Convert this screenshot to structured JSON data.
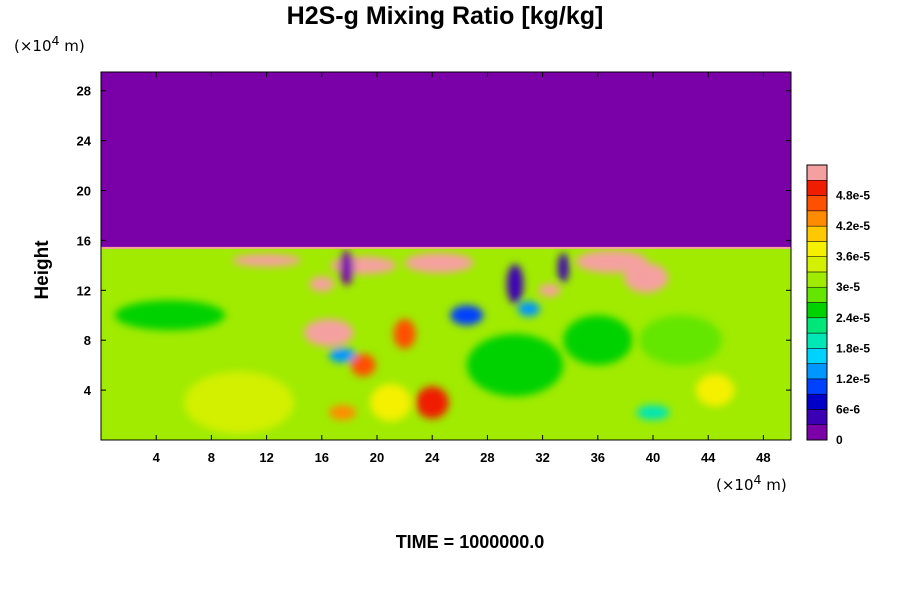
{
  "chart_data": {
    "type": "heatmap",
    "title": "H2S-g Mixing Ratio [kg/kg]",
    "xlabel": "",
    "ylabel": "Height",
    "x_unit": {
      "prefix": "(×10",
      "exp": "4",
      "suffix": " m)"
    },
    "y_unit": {
      "prefix": "(×10",
      "exp": "4",
      "suffix": " m)"
    },
    "x_ticks": [
      4,
      8,
      12,
      16,
      20,
      24,
      28,
      32,
      36,
      40,
      44,
      48
    ],
    "y_ticks": [
      4,
      8,
      12,
      16,
      20,
      24,
      28
    ],
    "xlim": [
      0,
      50
    ],
    "ylim": [
      0,
      29.5
    ],
    "colorbar": {
      "levels": [
        0,
        3e-06,
        6e-06,
        9e-06,
        1.2e-05,
        1.5e-05,
        1.8e-05,
        2.1e-05,
        2.4e-05,
        2.7e-05,
        3e-05,
        3.3e-05,
        3.6e-05,
        3.9e-05,
        4.2e-05,
        4.5e-05,
        4.8e-05,
        5.1e-05
      ],
      "tick_labels": [
        {
          "value": 0,
          "label": "0"
        },
        {
          "value": 6e-06,
          "label": "6e-6"
        },
        {
          "value": 1.2e-05,
          "label": "1.2e-5"
        },
        {
          "value": 1.8e-05,
          "label": "1.8e-5"
        },
        {
          "value": 2.4e-05,
          "label": "2.4e-5"
        },
        {
          "value": 3e-05,
          "label": "3e-5"
        },
        {
          "value": 3.6e-05,
          "label": "3.6e-5"
        },
        {
          "value": 4.2e-05,
          "label": "4.2e-5"
        },
        {
          "value": 4.8e-05,
          "label": "4.8e-5"
        }
      ],
      "colors": [
        "#7a00a8",
        "#3c00b4",
        "#0000c8",
        "#0040ff",
        "#0096ff",
        "#00d2ff",
        "#00e6b4",
        "#00e678",
        "#00d200",
        "#64e600",
        "#a0eb00",
        "#d2f000",
        "#f5f000",
        "#ffc800",
        "#ff8c00",
        "#ff5000",
        "#f01e00",
        "#f5a0a0"
      ]
    },
    "field": {
      "upper_value": 0,
      "boundary_height": 15.4,
      "background_value": 3.15e-05,
      "features": [
        {
          "x": 19,
          "y": 14,
          "value": 5.2e-05,
          "rx": 2.4,
          "ry": 0.7
        },
        {
          "x": 16.5,
          "y": 8.6,
          "value": 5.2e-05,
          "rx": 1.8,
          "ry": 1.1
        },
        {
          "x": 16,
          "y": 12.5,
          "value": 5.2e-05,
          "rx": 0.9,
          "ry": 0.6
        },
        {
          "x": 12,
          "y": 14.4,
          "value": 5.2e-05,
          "rx": 2.5,
          "ry": 0.5
        },
        {
          "x": 24.5,
          "y": 14.2,
          "value": 5.2e-05,
          "rx": 2.5,
          "ry": 0.8
        },
        {
          "x": 37,
          "y": 14.3,
          "value": 5.2e-05,
          "rx": 2.6,
          "ry": 0.9
        },
        {
          "x": 39.5,
          "y": 13,
          "value": 5.2e-05,
          "rx": 1.6,
          "ry": 1.2
        },
        {
          "x": 32.5,
          "y": 12,
          "value": 5.2e-05,
          "rx": 0.8,
          "ry": 0.5
        },
        {
          "x": 17.8,
          "y": 13.8,
          "value": 1.5e-06,
          "rx": 0.5,
          "ry": 1.4
        },
        {
          "x": 30,
          "y": 12.5,
          "value": 4.5e-06,
          "rx": 0.6,
          "ry": 1.6
        },
        {
          "x": 33.5,
          "y": 13.8,
          "value": 3e-06,
          "rx": 0.4,
          "ry": 1.2
        },
        {
          "x": 17.5,
          "y": 6.8,
          "value": 1.3e-05,
          "rx": 1.0,
          "ry": 0.6
        },
        {
          "x": 26.5,
          "y": 10,
          "value": 1e-05,
          "rx": 1.2,
          "ry": 0.8
        },
        {
          "x": 31,
          "y": 10.5,
          "value": 1.2e-05,
          "rx": 0.8,
          "ry": 0.6
        },
        {
          "x": 40,
          "y": 2.2,
          "value": 1.8e-05,
          "rx": 1.2,
          "ry": 0.6
        },
        {
          "x": 22,
          "y": 8.5,
          "value": 4.5e-05,
          "rx": 0.8,
          "ry": 1.2
        },
        {
          "x": 24,
          "y": 3,
          "value": 5e-05,
          "rx": 1.2,
          "ry": 1.3
        },
        {
          "x": 19,
          "y": 6,
          "value": 4.6e-05,
          "rx": 0.9,
          "ry": 0.9
        },
        {
          "x": 17.5,
          "y": 2.2,
          "value": 4.2e-05,
          "rx": 1.0,
          "ry": 0.6
        },
        {
          "x": 44.5,
          "y": 4,
          "value": 3.8e-05,
          "rx": 1.4,
          "ry": 1.3
        },
        {
          "x": 21,
          "y": 3,
          "value": 3.8e-05,
          "rx": 1.5,
          "ry": 1.5
        },
        {
          "x": 5,
          "y": 10,
          "value": 2.6e-05,
          "rx": 4.0,
          "ry": 1.2
        },
        {
          "x": 30,
          "y": 6,
          "value": 2.6e-05,
          "rx": 3.5,
          "ry": 2.5
        },
        {
          "x": 36,
          "y": 8,
          "value": 2.6e-05,
          "rx": 2.5,
          "ry": 2.0
        },
        {
          "x": 42,
          "y": 8,
          "value": 2.7e-05,
          "rx": 3.0,
          "ry": 2.0
        },
        {
          "x": 10,
          "y": 3,
          "value": 3.4e-05,
          "rx": 4.0,
          "ry": 2.5
        }
      ]
    }
  },
  "time": {
    "label": "TIME = ",
    "value": "1000000.0"
  }
}
